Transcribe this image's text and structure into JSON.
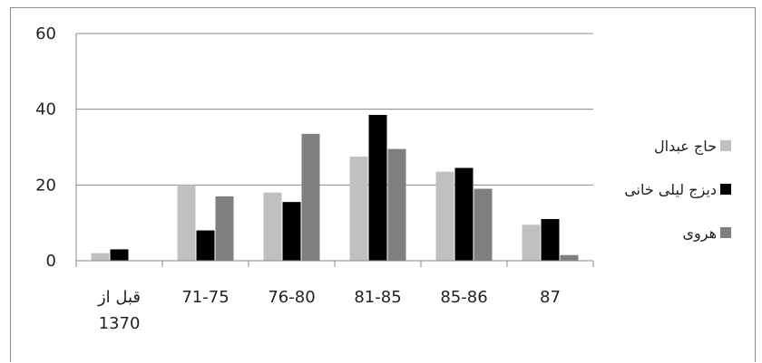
{
  "chart_data": {
    "type": "bar",
    "categories": [
      [
        "قبل از",
        "1370"
      ],
      [
        "71-75"
      ],
      [
        "76-80"
      ],
      [
        "81-85"
      ],
      [
        "85-86"
      ],
      [
        "87"
      ]
    ],
    "series": [
      {
        "name": "حاج عبدال",
        "color": "#c0c0c0",
        "values": [
          2,
          20,
          18,
          27.5,
          23.5,
          9.5
        ]
      },
      {
        "name": "دیزج لیلی خانی",
        "color": "#000000",
        "values": [
          3,
          8,
          15.5,
          38.5,
          24.5,
          11
        ]
      },
      {
        "name": "هروی",
        "color": "#7f7f7f",
        "values": [
          0,
          17,
          33.5,
          29.5,
          19,
          1.5
        ]
      }
    ],
    "ylim": [
      0,
      60
    ],
    "yticks": [
      0,
      20,
      40,
      60
    ],
    "grid": true,
    "legend_position": "right"
  }
}
